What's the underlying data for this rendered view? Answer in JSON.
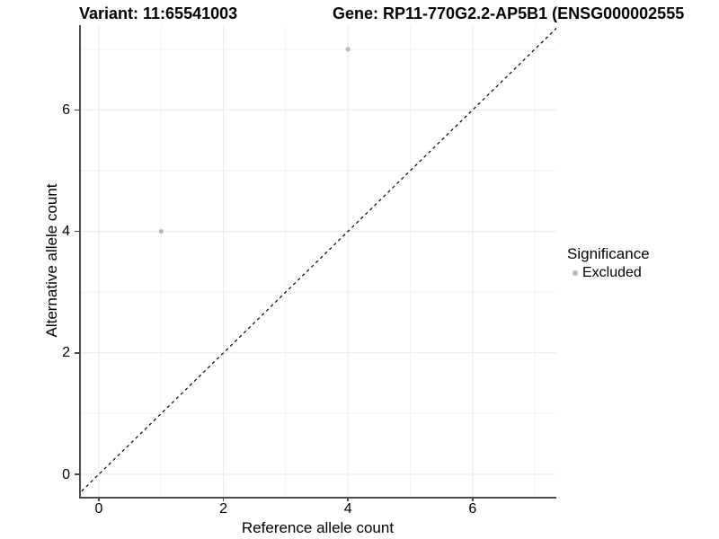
{
  "titles": {
    "variant": "Variant: 11:65541003",
    "gene": "Gene: RP11-770G2.2-AP5B1 (ENSG000002555"
  },
  "colors": {
    "axis_line": "#4d4d4d",
    "grid_major": "#e9e9e9",
    "grid_minor": "#f2f2f2",
    "excluded_point": "#b9b9b9",
    "identity_line": "#000000",
    "text": "#000000"
  },
  "chart_data": {
    "type": "scatter",
    "title_left": "Variant: 11:65541003",
    "title_right": "Gene: RP11-770G2.2-AP5B1 (ENSG000002555",
    "xlabel": "Reference allele count",
    "ylabel": "Alternative allele count",
    "xlim": [
      -0.35,
      7.35
    ],
    "ylim": [
      -0.35,
      7.35
    ],
    "x_ticks": [
      0,
      2,
      4,
      6
    ],
    "y_ticks": [
      0,
      2,
      4,
      6
    ],
    "minor_x": [
      1,
      3,
      5,
      7
    ],
    "minor_y": [
      1,
      3,
      5,
      7
    ],
    "grid": true,
    "identity_line": {
      "style": "dashed",
      "slope": 1,
      "intercept": 0,
      "color": "#000000"
    },
    "series": [
      {
        "name": "Excluded",
        "color": "#b9b9b9",
        "points": [
          {
            "x": 1,
            "y": 4
          },
          {
            "x": 4,
            "y": 7
          }
        ]
      }
    ],
    "legend": {
      "title": "Significance",
      "position": "right",
      "entries": [
        {
          "label": "Excluded",
          "color": "#b9b9b9"
        }
      ]
    }
  }
}
